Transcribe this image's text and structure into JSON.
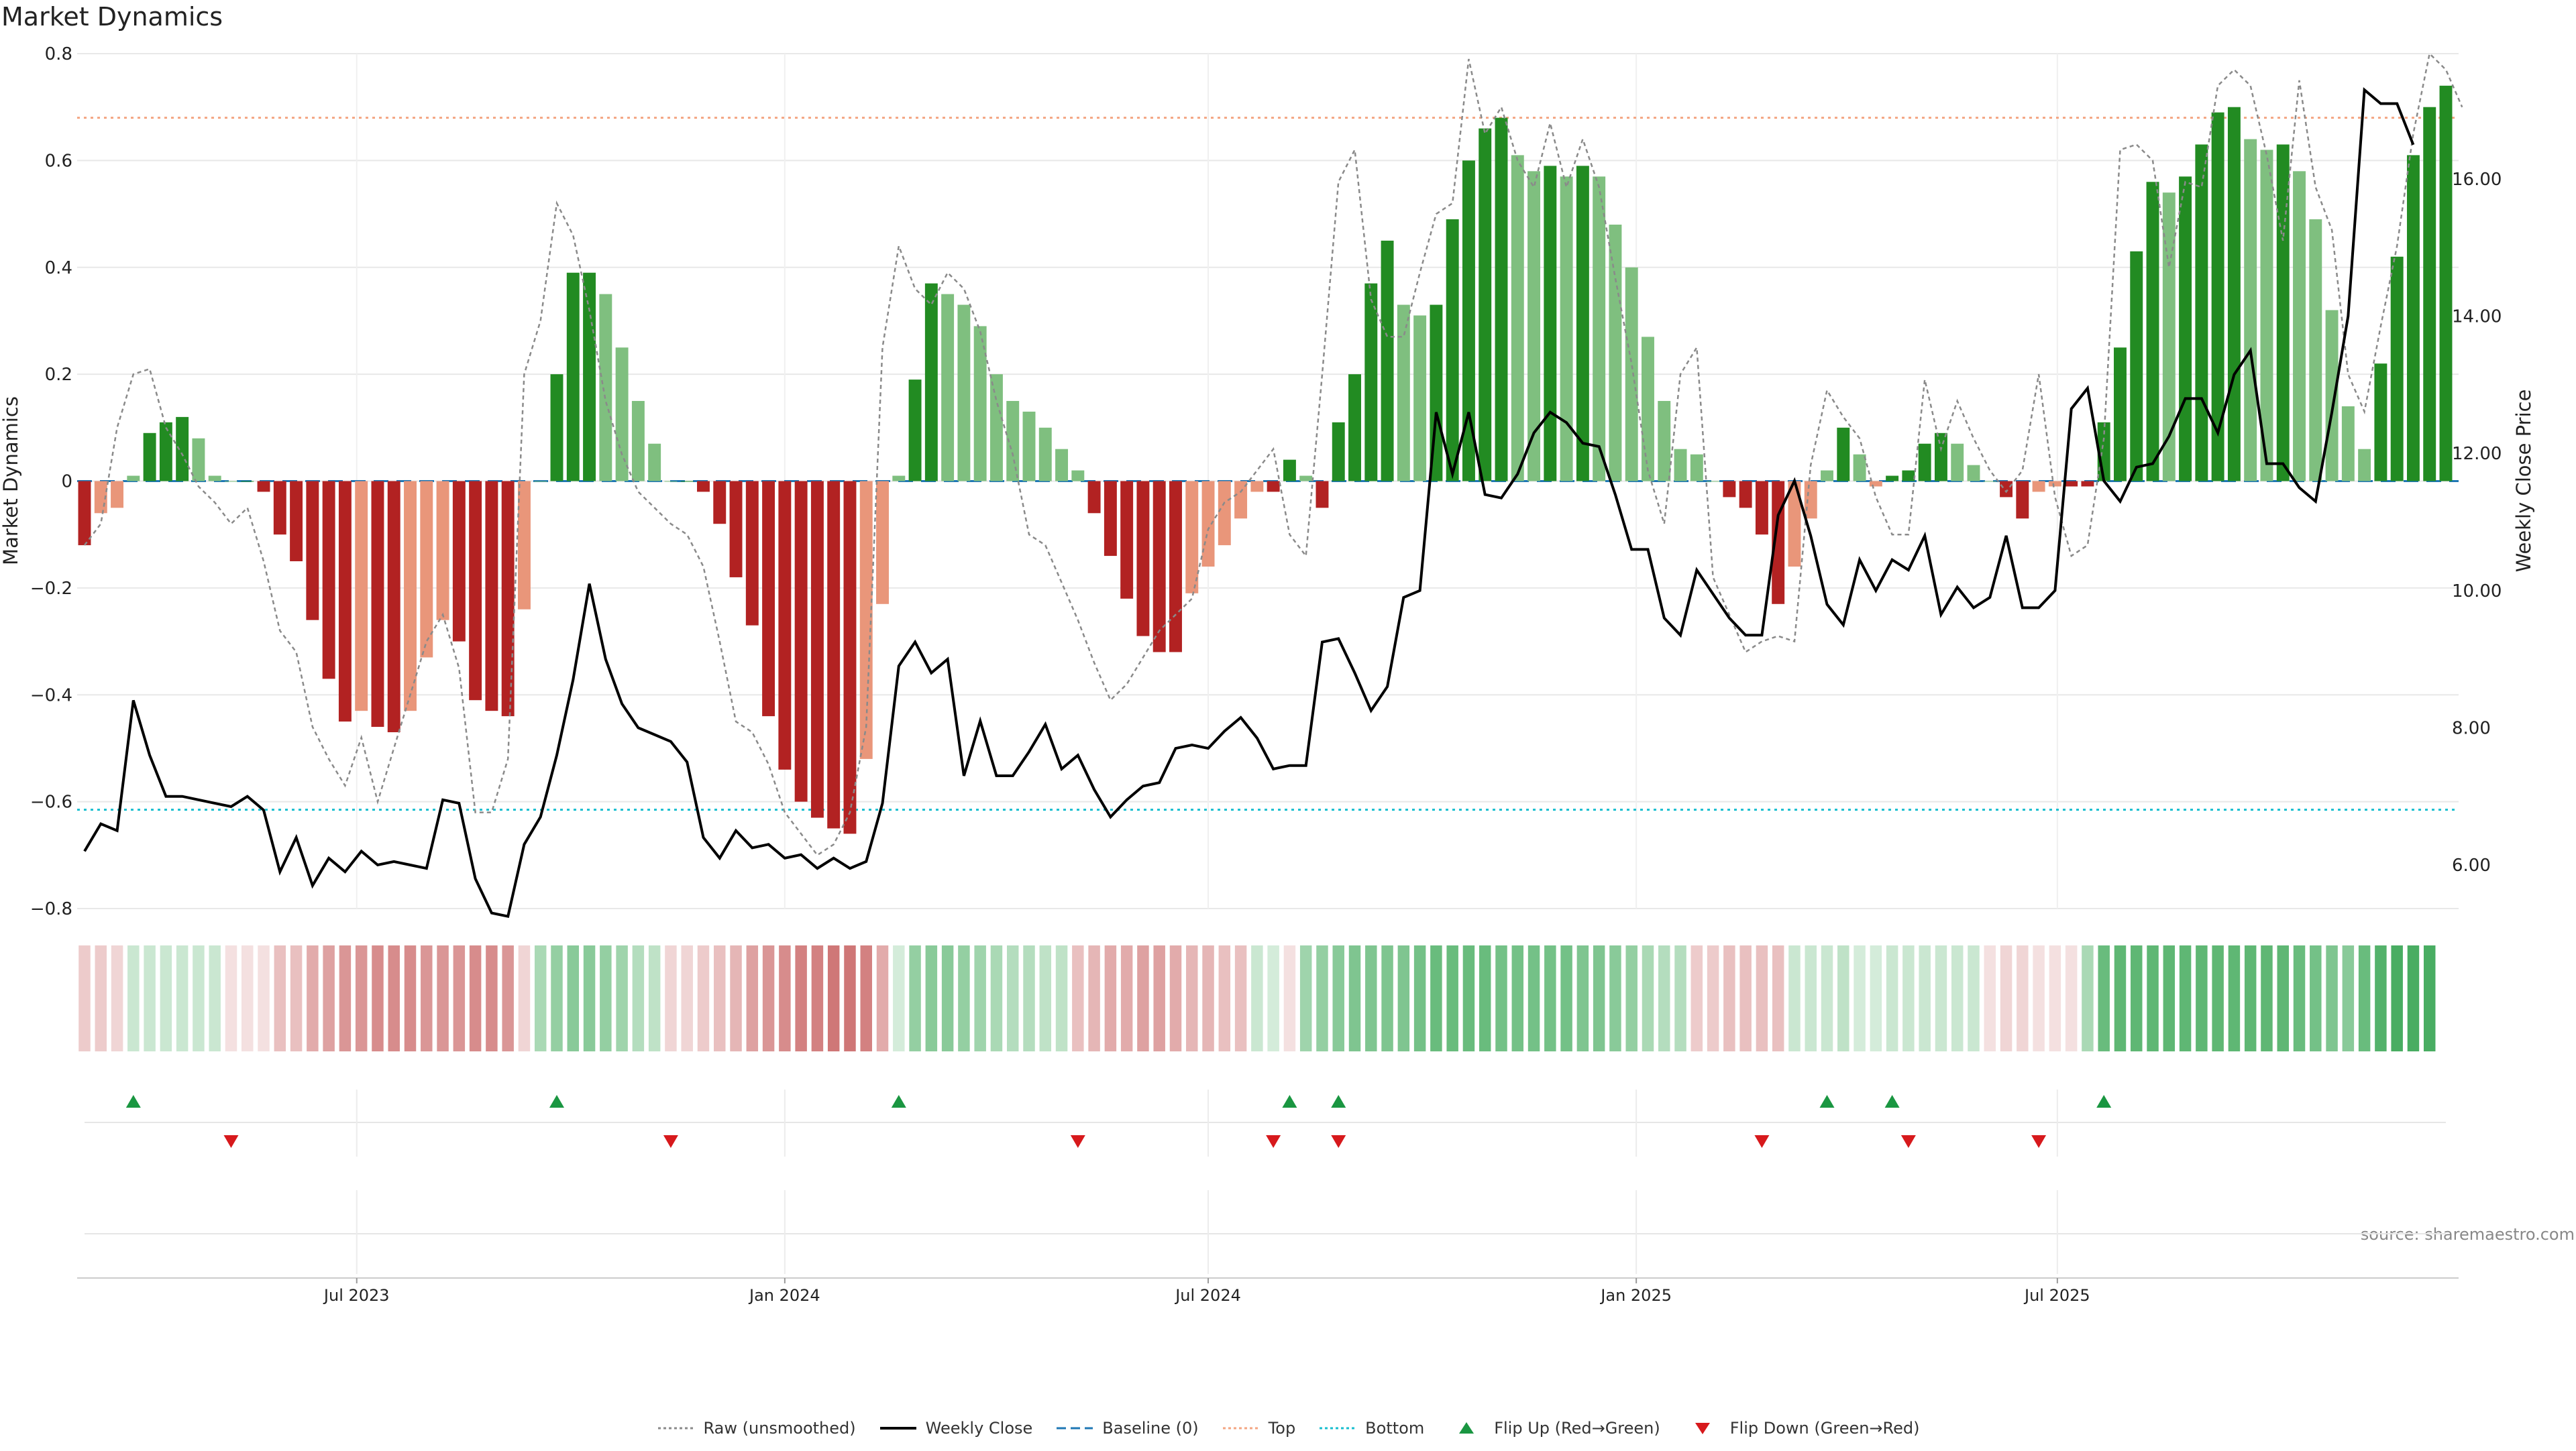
{
  "chart_data": {
    "type": "bar",
    "title": "Market Dynamics",
    "ylabel": "Market Dynamics",
    "y2label": "Weekly Close Price",
    "source": "source: sharemaestro.com",
    "ylim": [
      -0.8,
      0.8
    ],
    "y2lim": [
      4.9,
      18.2
    ],
    "y_ticks": [
      0.8,
      0.6,
      0.4,
      0.2,
      0,
      -0.2,
      -0.4,
      -0.6,
      -0.8
    ],
    "y_tick_labels": [
      "0.8",
      "0.6",
      "0.4",
      "0.2",
      "0",
      "−0.2",
      "−0.4",
      "−0.6",
      "−0.8"
    ],
    "y2_ticks": [
      16,
      14,
      12,
      10,
      8,
      6
    ],
    "y2_tick_labels": [
      "16.00",
      "14.00",
      "12.00",
      "10.00",
      "8.00",
      "6.00"
    ],
    "x_start": "2023-03-06",
    "x_step_days": 7,
    "x_ticks": [
      {
        "date": "2023-07-01",
        "label": "Jul 2023"
      },
      {
        "date": "2024-01-01",
        "label": "Jan 2024"
      },
      {
        "date": "2024-07-01",
        "label": "Jul 2024"
      },
      {
        "date": "2025-01-01",
        "label": "Jan 2025"
      },
      {
        "date": "2025-07-01",
        "label": "Jul 2025"
      }
    ],
    "top_level": 0.68,
    "bottom_level": -0.615,
    "grid": true,
    "legend_position": "bottom-center",
    "colors": {
      "bar_red_strong": "#b22222",
      "bar_red_weak": "#e9967a",
      "bar_green_strong": "#228b22",
      "bar_green_weak": "#7fbf7f",
      "raw_line": "#8a8a8a",
      "close_line": "#000000",
      "baseline": "#1f77b4",
      "top": "#f4a582",
      "bottom": "#17becf",
      "flip_up": "#1a9641",
      "flip_down": "#d7191c"
    },
    "series": [
      {
        "name": "Market Dynamics",
        "values": [
          -0.12,
          -0.06,
          -0.05,
          0.01,
          0.09,
          0.11,
          0.12,
          0.08,
          0.01,
          0,
          0,
          -0.02,
          -0.1,
          -0.15,
          -0.26,
          -0.37,
          -0.45,
          -0.43,
          -0.46,
          -0.47,
          -0.43,
          -0.33,
          -0.26,
          -0.3,
          -0.41,
          -0.43,
          -0.44,
          -0.24,
          0,
          0.2,
          0.39,
          0.39,
          0.35,
          0.25,
          0.15,
          0.07,
          0,
          0,
          -0.02,
          -0.08,
          -0.18,
          -0.27,
          -0.44,
          -0.54,
          -0.6,
          -0.63,
          -0.65,
          -0.66,
          -0.52,
          -0.23,
          0.01,
          0.19,
          0.37,
          0.35,
          0.33,
          0.29,
          0.2,
          0.15,
          0.13,
          0.1,
          0.06,
          0.02,
          -0.06,
          -0.14,
          -0.22,
          -0.29,
          -0.32,
          -0.32,
          -0.21,
          -0.16,
          -0.12,
          -0.07,
          -0.02,
          -0.02,
          0.04,
          0.01,
          -0.05,
          0.11,
          0.2,
          0.37,
          0.45,
          0.33,
          0.31,
          0.33,
          0.49,
          0.6,
          0.66,
          0.68,
          0.61,
          0.58,
          0.59,
          0.57,
          0.59,
          0.57,
          0.48,
          0.4,
          0.27,
          0.15,
          0.06,
          0.05,
          0,
          -0.03,
          -0.05,
          -0.1,
          -0.23,
          -0.16,
          -0.07,
          0.02,
          0.1,
          0.05,
          -0.01,
          0.01,
          0.02,
          0.07,
          0.09,
          0.07,
          0.03,
          0,
          -0.03,
          -0.07,
          -0.02,
          -0.01,
          -0.01,
          -0.01,
          0.11,
          0.25,
          0.43,
          0.56,
          0.54,
          0.57,
          0.63,
          0.69,
          0.7,
          0.64,
          0.62,
          0.63,
          0.58,
          0.49,
          0.32,
          0.14,
          0.06,
          0.22,
          0.42,
          0.61,
          0.7,
          0.74
        ]
      },
      {
        "name": "Raw (unsmoothed)",
        "values": [
          -0.12,
          -0.08,
          0.1,
          0.2,
          0.21,
          0.1,
          0.05,
          -0.01,
          -0.04,
          -0.08,
          -0.05,
          -0.15,
          -0.28,
          -0.32,
          -0.46,
          -0.52,
          -0.57,
          -0.48,
          -0.6,
          -0.5,
          -0.4,
          -0.3,
          -0.25,
          -0.35,
          -0.62,
          -0.62,
          -0.52,
          0.2,
          0.3,
          0.52,
          0.46,
          0.32,
          0.15,
          0.05,
          -0.02,
          -0.05,
          -0.08,
          -0.1,
          -0.16,
          -0.3,
          -0.45,
          -0.47,
          -0.53,
          -0.62,
          -0.66,
          -0.7,
          -0.68,
          -0.62,
          -0.46,
          0.25,
          0.44,
          0.36,
          0.33,
          0.39,
          0.36,
          0.28,
          0.15,
          0.05,
          -0.1,
          -0.12,
          -0.19,
          -0.26,
          -0.34,
          -0.41,
          -0.38,
          -0.33,
          -0.28,
          -0.25,
          -0.22,
          -0.09,
          -0.04,
          -0.02,
          0.02,
          0.06,
          -0.1,
          -0.14,
          0.2,
          0.56,
          0.62,
          0.34,
          0.27,
          0.27,
          0.39,
          0.5,
          0.52,
          0.79,
          0.65,
          0.7,
          0.6,
          0.55,
          0.67,
          0.55,
          0.64,
          0.55,
          0.38,
          0.22,
          0.02,
          -0.08,
          0.2,
          0.25,
          -0.18,
          -0.25,
          -0.32,
          -0.3,
          -0.29,
          -0.3,
          0.03,
          0.17,
          0.12,
          0.08,
          -0.03,
          -0.1,
          -0.1,
          0.19,
          0.06,
          0.15,
          0.08,
          0.02,
          -0.02,
          0.02,
          0.2,
          -0.03,
          -0.14,
          -0.12,
          0.08,
          0.62,
          0.63,
          0.6,
          0.4,
          0.56,
          0.55,
          0.74,
          0.77,
          0.74,
          0.61,
          0.45,
          0.75,
          0.55,
          0.47,
          0.2,
          0.13,
          0.29,
          0.44,
          0.65,
          0.8,
          0.77,
          0.7
        ]
      },
      {
        "name": "Weekly Close",
        "values": [
          6.2,
          6.6,
          6.5,
          8.4,
          7.6,
          7.0,
          7.0,
          6.95,
          6.9,
          6.85,
          7.0,
          6.8,
          5.9,
          6.4,
          5.7,
          6.1,
          5.9,
          6.2,
          6.0,
          6.05,
          6.0,
          5.95,
          6.95,
          6.9,
          5.8,
          5.3,
          5.25,
          6.3,
          6.7,
          7.6,
          8.7,
          10.1,
          9.0,
          8.35,
          8.0,
          7.9,
          7.8,
          7.5,
          6.4,
          6.1,
          6.5,
          6.25,
          6.3,
          6.1,
          6.15,
          5.95,
          6.1,
          5.95,
          6.05,
          6.9,
          8.9,
          9.25,
          8.8,
          9.0,
          7.3,
          8.1,
          7.3,
          7.3,
          7.65,
          8.05,
          7.4,
          7.6,
          7.1,
          6.7,
          6.95,
          7.15,
          7.2,
          7.7,
          7.75,
          7.7,
          7.95,
          8.15,
          7.85,
          7.4,
          7.45,
          7.45,
          9.25,
          9.3,
          8.8,
          8.25,
          8.6,
          9.9,
          10.0,
          12.6,
          11.7,
          12.6,
          11.4,
          11.35,
          11.7,
          12.3,
          12.6,
          12.45,
          12.15,
          12.1,
          11.4,
          10.6,
          10.6,
          9.6,
          9.35,
          10.3,
          9.95,
          9.6,
          9.35,
          9.35,
          11.1,
          11.6,
          10.8,
          9.8,
          9.5,
          10.45,
          10.0,
          10.45,
          10.3,
          10.8,
          9.65,
          10.05,
          9.75,
          9.9,
          10.8,
          9.75,
          9.75,
          10.0,
          12.65,
          12.95,
          11.6,
          11.3,
          11.8,
          11.85,
          12.25,
          12.8,
          12.8,
          12.3,
          13.15,
          13.5,
          11.85,
          11.85,
          11.5,
          11.3,
          12.6,
          14.0,
          17.3,
          17.1,
          17.1,
          16.5
        ]
      }
    ],
    "regime_strip": {
      "description": "Per-week colour tile strip below the main chart; value = strength (-1 red … +1 green)",
      "values": [
        -0.25,
        -0.25,
        -0.2,
        0.25,
        0.25,
        0.25,
        0.25,
        0.25,
        0.25,
        -0.15,
        -0.15,
        -0.15,
        -0.3,
        -0.3,
        -0.4,
        -0.45,
        -0.5,
        -0.5,
        -0.55,
        -0.55,
        -0.55,
        -0.5,
        -0.5,
        -0.5,
        -0.55,
        -0.55,
        -0.5,
        -0.2,
        0.4,
        0.5,
        0.55,
        0.55,
        0.5,
        0.45,
        0.35,
        0.3,
        -0.2,
        -0.2,
        -0.25,
        -0.3,
        -0.35,
        -0.45,
        -0.5,
        -0.55,
        -0.6,
        -0.6,
        -0.65,
        -0.65,
        -0.6,
        -0.4,
        0.2,
        0.5,
        0.55,
        0.55,
        0.5,
        0.45,
        0.4,
        0.35,
        0.35,
        0.3,
        0.3,
        -0.3,
        -0.35,
        -0.4,
        -0.4,
        -0.45,
        -0.45,
        -0.4,
        -0.35,
        -0.35,
        -0.3,
        -0.3,
        0.25,
        0.2,
        -0.15,
        0.45,
        0.5,
        0.55,
        0.6,
        0.6,
        0.6,
        0.6,
        0.65,
        0.7,
        0.7,
        0.7,
        0.7,
        0.65,
        0.65,
        0.65,
        0.65,
        0.65,
        0.6,
        0.6,
        0.55,
        0.5,
        0.4,
        0.35,
        0.35,
        -0.25,
        -0.25,
        -0.3,
        -0.3,
        -0.3,
        -0.3,
        0.25,
        0.25,
        0.25,
        0.3,
        0.2,
        0.2,
        0.25,
        0.25,
        0.25,
        0.25,
        0.25,
        0.25,
        -0.15,
        -0.2,
        -0.2,
        -0.15,
        -0.15,
        -0.15,
        0.4,
        0.7,
        0.75,
        0.75,
        0.75,
        0.75,
        0.75,
        0.75,
        0.75,
        0.75,
        0.75,
        0.75,
        0.75,
        0.7,
        0.65,
        0.6,
        0.55,
        0.7,
        0.8,
        0.85,
        0.85,
        0.85
      ]
    },
    "flips": {
      "up_indices": [
        3,
        29,
        50,
        74,
        77,
        107,
        111,
        124
      ],
      "down_indices": [
        9,
        36,
        61,
        73,
        77,
        103,
        112,
        120
      ]
    },
    "legend": [
      {
        "label": "Raw (unsmoothed)",
        "kind": "dotted",
        "color": "#8a8a8a"
      },
      {
        "label": "Weekly Close",
        "kind": "solid",
        "color": "#000000"
      },
      {
        "label": "Baseline (0)",
        "kind": "dashed",
        "color": "#1f77b4"
      },
      {
        "label": "Top",
        "kind": "dotted",
        "color": "#f4a582"
      },
      {
        "label": "Bottom",
        "kind": "dotted",
        "color": "#17becf"
      },
      {
        "label": "Flip Up (Red→Green)",
        "kind": "tri-up",
        "color": "#1a9641"
      },
      {
        "label": "Flip Down (Green→Red)",
        "kind": "tri-down",
        "color": "#d7191c"
      }
    ]
  }
}
